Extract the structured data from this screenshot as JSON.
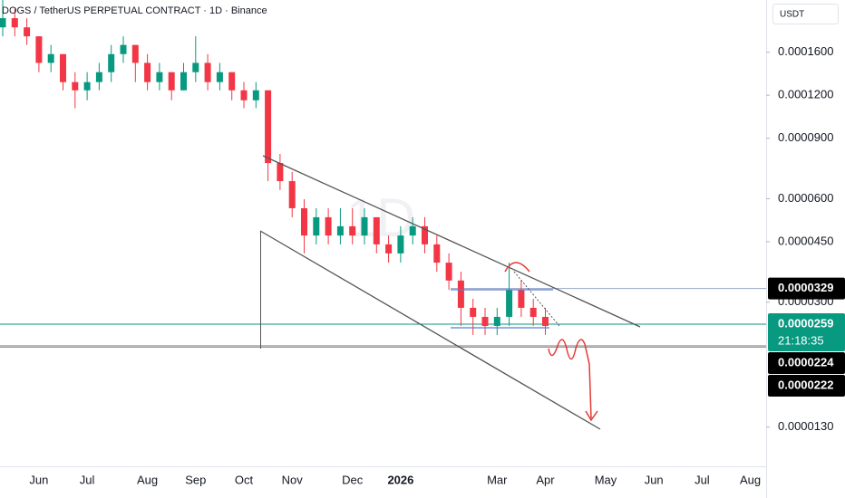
{
  "chart_data": {
    "type": "candlestick",
    "title": "DOGS / TetherUS PERPETUAL CONTRACT · 1D · Binance",
    "watermark": "1D",
    "currency": "USDT",
    "log_scale": true,
    "up_color": "#089981",
    "down_color": "#f23645",
    "categories": [
      null,
      null,
      null,
      "Jun",
      null,
      null,
      null,
      "Jul",
      null,
      null,
      null,
      null,
      "Aug",
      null,
      null,
      null,
      "Sep",
      null,
      null,
      null,
      "Oct",
      null,
      null,
      null,
      "Nov",
      null,
      null,
      null,
      null,
      "Dec",
      null,
      null,
      null,
      "2026",
      null,
      null,
      null,
      null,
      null,
      null,
      null,
      "Mar",
      null,
      null,
      null,
      "Apr",
      null,
      null,
      null,
      null,
      "May",
      null,
      null,
      null,
      "Jun",
      null,
      null,
      null,
      "Jul",
      null,
      null,
      null,
      "Aug",
      null
    ],
    "open": [
      0.000189,
      0.000201,
      0.000189,
      0.000178,
      0.000149,
      0.000158,
      0.000131,
      0.000124,
      0.000131,
      0.00014,
      0.000158,
      0.000168,
      0.000149,
      0.000131,
      0.00014,
      0.000124,
      0.00014,
      0.000149,
      0.000131,
      0.00014,
      0.000124,
      0.000116,
      0.000124,
      7.62e-05,
      6.75e-05,
      5.63e-05,
      4.69e-05,
      5.3e-05,
      4.69e-05,
      4.99e-05,
      4.69e-05,
      5.3e-05,
      4.42e-05,
      4.16e-05,
      4.69e-05,
      4.99e-05,
      4.42e-05,
      3.91e-05,
      3.47e-05,
      2.89e-05,
      2.72e-05,
      2.56e-05,
      2.72e-05,
      3.26e-05,
      2.89e-05,
      2.72e-05,
      null,
      null,
      null,
      null,
      null,
      null,
      null,
      null,
      null,
      null,
      null,
      null,
      null,
      null,
      null,
      null,
      null,
      null
    ],
    "high": [
      0.000227,
      0.000214,
      0.000201,
      0.000178,
      0.000168,
      0.000158,
      0.00014,
      0.00014,
      0.000149,
      0.000168,
      0.000178,
      0.000168,
      0.000158,
      0.000149,
      0.00014,
      0.000149,
      0.000178,
      0.000158,
      0.000149,
      0.00014,
      0.000131,
      0.000131,
      0.000124,
      8.1e-05,
      7.18e-05,
      5.98e-05,
      5.63e-05,
      5.63e-05,
      5.63e-05,
      5.63e-05,
      5.63e-05,
      5.3e-05,
      4.69e-05,
      4.99e-05,
      5.3e-05,
      5.3e-05,
      4.69e-05,
      4.16e-05,
      3.68e-05,
      3.07e-05,
      2.89e-05,
      2.89e-05,
      3.91e-05,
      3.47e-05,
      3.07e-05,
      2.89e-05,
      null,
      null,
      null,
      null,
      null,
      null,
      null,
      null,
      null,
      null,
      null,
      null,
      null,
      null,
      null,
      null,
      null,
      null
    ],
    "low": [
      0.000178,
      0.000178,
      0.000168,
      0.00014,
      0.00014,
      0.000124,
      0.00011,
      0.000116,
      0.000124,
      0.000131,
      0.000149,
      0.000131,
      0.000124,
      0.000124,
      0.000116,
      0.000124,
      0.000131,
      0.000124,
      0.000124,
      0.000116,
      0.00011,
      0.00011,
      6.75e-05,
      6.36e-05,
      5.3e-05,
      4.16e-05,
      4.42e-05,
      4.42e-05,
      4.42e-05,
      4.42e-05,
      4.42e-05,
      4.16e-05,
      3.91e-05,
      3.91e-05,
      4.42e-05,
      4.16e-05,
      3.68e-05,
      3.26e-05,
      2.56e-05,
      2.41e-05,
      2.41e-05,
      2.41e-05,
      2.56e-05,
      2.72e-05,
      2.56e-05,
      2.41e-05,
      null,
      null,
      null,
      null,
      null,
      null,
      null,
      null,
      null,
      null,
      null,
      null,
      null,
      null,
      null,
      null,
      null,
      null
    ],
    "close": [
      0.000201,
      0.000189,
      0.000178,
      0.000149,
      0.000158,
      0.000131,
      0.000124,
      0.000131,
      0.00014,
      0.000158,
      0.000168,
      0.000149,
      0.000131,
      0.00014,
      0.000124,
      0.00014,
      0.000149,
      0.000131,
      0.00014,
      0.000124,
      0.000116,
      0.000124,
      7.62e-05,
      6.75e-05,
      5.63e-05,
      4.69e-05,
      5.3e-05,
      4.69e-05,
      4.99e-05,
      4.69e-05,
      5.3e-05,
      4.42e-05,
      4.16e-05,
      4.69e-05,
      4.99e-05,
      4.42e-05,
      3.91e-05,
      3.47e-05,
      2.89e-05,
      2.72e-05,
      2.56e-05,
      2.72e-05,
      3.26e-05,
      2.89e-05,
      2.72e-05,
      2.56e-05,
      null,
      null,
      null,
      null,
      null,
      null,
      null,
      null,
      null,
      null,
      null,
      null,
      null,
      null,
      null,
      null,
      null,
      null
    ],
    "ylim": [
      1e-05,
      0.000227
    ],
    "yticks": [
      {
        "value": 0.00016,
        "label": "0.0001600"
      },
      {
        "value": 0.00012,
        "label": "0.0001200"
      },
      {
        "value": 9e-05,
        "label": "0.0000900"
      },
      {
        "value": 6e-05,
        "label": "0.0000600"
      },
      {
        "value": 4.5e-05,
        "label": "0.0000450"
      },
      {
        "value": 3e-05,
        "label": "0.0000300"
      },
      {
        "value": 1.3e-05,
        "label": "0.0000130"
      }
    ],
    "price_lines": [
      {
        "value": 3.29e-05,
        "label": "0.0000329",
        "color": "#000000",
        "line": "#9aa8c7"
      },
      {
        "value": 2.59e-05,
        "label": "0.0000259",
        "color": "#089981",
        "line": "#089981",
        "countdown": "21:18:35"
      },
      {
        "value": 2.24e-05,
        "label": "0.0000224",
        "color": "#000000",
        "line": "#777777"
      },
      {
        "value": 2.22e-05,
        "label": "0.0000222",
        "color": "#000000",
        "line": "#999999"
      }
    ]
  }
}
